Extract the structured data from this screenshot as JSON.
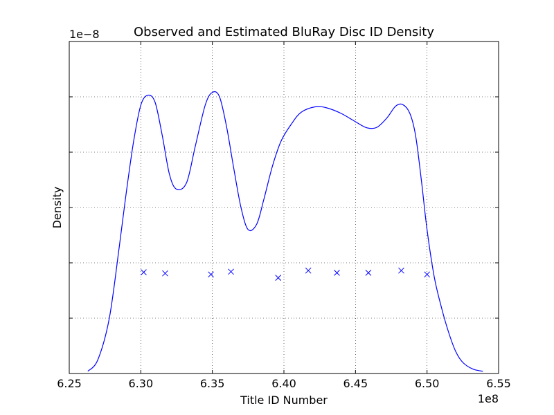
{
  "chart_data": {
    "type": "line",
    "title": "Observed and Estimated BluRay Disc ID Density",
    "xlabel": "Title ID Number",
    "ylabel": "Density",
    "x_offset_label": "1e8",
    "y_offset_label": "1e−8",
    "xlim": [
      625000000,
      655000000
    ],
    "ylim": [
      0,
      6e-08
    ],
    "xticks": [
      625000000,
      630000000,
      635000000,
      640000000,
      645000000,
      650000000,
      655000000
    ],
    "xtick_labels": [
      "6.25",
      "6.30",
      "6.35",
      "6.40",
      "6.45",
      "6.50",
      "6.55"
    ],
    "yticks": [
      0,
      1e-08,
      2e-08,
      3e-08,
      4e-08,
      5e-08,
      6e-08
    ],
    "grid": true,
    "series": [
      {
        "style": "line",
        "color": "#0000ff",
        "x": [
          626300000,
          627000000,
          627800000,
          628500000,
          629000000,
          629500000,
          630000000,
          630500000,
          631000000,
          631500000,
          632000000,
          632500000,
          633200000,
          633800000,
          634500000,
          635000000,
          635500000,
          636000000,
          636500000,
          637000000,
          637500000,
          638100000,
          638600000,
          639200000,
          639800000,
          640500000,
          641200000,
          642200000,
          643000000,
          644000000,
          645000000,
          645800000,
          646500000,
          647200000,
          647800000,
          648300000,
          648800000,
          649200000,
          649600000,
          650000000,
          650500000,
          651000000,
          651500000,
          652000000,
          652500000,
          653200000,
          653900000
        ],
        "y": [
          4e-10,
          2.5e-09,
          1e-08,
          2.3e-08,
          3.3e-08,
          4.2e-08,
          4.85e-08,
          5.03e-08,
          4.9e-08,
          4.3e-08,
          3.6e-08,
          3.33e-08,
          3.45e-08,
          4.1e-08,
          4.85e-08,
          5.08e-08,
          5e-08,
          4.45e-08,
          3.7e-08,
          3e-08,
          2.6e-08,
          2.7e-08,
          3.15e-08,
          3.75e-08,
          4.2e-08,
          4.5e-08,
          4.72e-08,
          4.82e-08,
          4.8e-08,
          4.7e-08,
          4.55e-08,
          4.44e-08,
          4.45e-08,
          4.62e-08,
          4.83e-08,
          4.86e-08,
          4.7e-08,
          4.3e-08,
          3.5e-08,
          2.6e-08,
          1.75e-08,
          1.2e-08,
          7.5e-09,
          4e-09,
          2e-09,
          8e-10,
          4e-10
        ]
      },
      {
        "style": "scatter",
        "marker": "x",
        "color": "#0000ff",
        "x": [
          630200000,
          631700000,
          634900000,
          636300000,
          639600000,
          641700000,
          643700000,
          645900000,
          648200000,
          650000000
        ],
        "y": [
          1.83e-08,
          1.81e-08,
          1.79e-08,
          1.84e-08,
          1.73e-08,
          1.86e-08,
          1.82e-08,
          1.82e-08,
          1.86e-08,
          1.79e-08
        ]
      }
    ]
  }
}
